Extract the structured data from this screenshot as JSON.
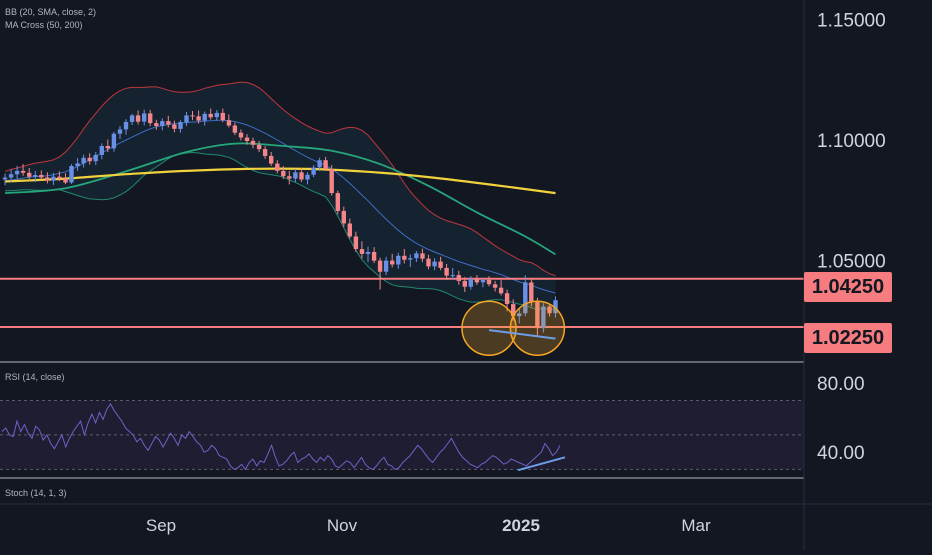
{
  "indicators": {
    "bb_label": "BB (20, SMA, close, 2)",
    "ma_label": "MA Cross (50, 200)",
    "rsi_label": "RSI (14, close)",
    "stoch_label": "Stoch (14, 1, 3)"
  },
  "colors": {
    "background": "#131722",
    "candle_up": "#6a8fe6",
    "candle_down": "#f4858a",
    "bb_basis": "#3e6ec8",
    "bb_upper": "#c0373f",
    "bb_lower": "#1f8a6e",
    "ma50": "#26a67a",
    "ma200": "#f2d23c",
    "level_line": "#f77c80",
    "rsi_line": "#6e63c6",
    "trend_line": "#6e9de8",
    "circle": "#f5a623"
  },
  "chart_data": [
    {
      "type": "candlestick",
      "name": "price",
      "y_ticks": [
        "1.15000",
        "1.10000",
        "1.05000"
      ],
      "ylim": [
        1.008,
        1.158
      ],
      "x_ticks": [
        "Sep",
        "Nov",
        "2025",
        "Mar"
      ],
      "levels": [
        "1.04250",
        "1.02250"
      ],
      "candles": [
        [
          1.0836,
          1.086,
          1.0812,
          1.0844
        ],
        [
          1.0844,
          1.0878,
          1.0826,
          1.0858
        ],
        [
          1.0858,
          1.0893,
          1.084,
          1.0872
        ],
        [
          1.0872,
          1.09,
          1.0852,
          1.0864
        ],
        [
          1.0864,
          1.0884,
          1.0838,
          1.0848
        ],
        [
          1.0848,
          1.0872,
          1.0826,
          1.0855
        ],
        [
          1.0855,
          1.0874,
          1.0835,
          1.0845
        ],
        [
          1.0845,
          1.0866,
          1.082,
          1.0832
        ],
        [
          1.0832,
          1.0864,
          1.0814,
          1.0848
        ],
        [
          1.0848,
          1.087,
          1.0829,
          1.084
        ],
        [
          1.084,
          1.0862,
          1.0817,
          1.0824
        ],
        [
          1.0824,
          1.09,
          1.0818,
          1.0892
        ],
        [
          1.0892,
          1.0925,
          1.0872,
          1.0903
        ],
        [
          1.0903,
          1.0939,
          1.0886,
          1.0926
        ],
        [
          1.0926,
          1.0945,
          1.0898,
          1.0912
        ],
        [
          1.0912,
          1.095,
          1.0896,
          1.0938
        ],
        [
          1.0938,
          1.0986,
          1.092,
          1.0975
        ],
        [
          1.0975,
          1.1002,
          1.095,
          1.0965
        ],
        [
          1.0965,
          1.1034,
          1.0951,
          1.1026
        ],
        [
          1.1026,
          1.1058,
          1.1004,
          1.1044
        ],
        [
          1.1044,
          1.1086,
          1.1022,
          1.1075
        ],
        [
          1.1075,
          1.1108,
          1.1062,
          1.1102
        ],
        [
          1.1102,
          1.1122,
          1.1064,
          1.1076
        ],
        [
          1.1076,
          1.1126,
          1.106,
          1.111
        ],
        [
          1.111,
          1.1124,
          1.1057,
          1.107
        ],
        [
          1.107,
          1.1084,
          1.1042,
          1.1058
        ],
        [
          1.1058,
          1.109,
          1.104,
          1.1078
        ],
        [
          1.1078,
          1.11,
          1.1052,
          1.1064
        ],
        [
          1.1064,
          1.108,
          1.1032,
          1.1046
        ],
        [
          1.1046,
          1.1082,
          1.103,
          1.1074
        ],
        [
          1.1074,
          1.1116,
          1.1058,
          1.1102
        ],
        [
          1.1102,
          1.112,
          1.1082,
          1.1098
        ],
        [
          1.1098,
          1.1122,
          1.1068,
          1.108
        ],
        [
          1.108,
          1.1118,
          1.106,
          1.1108
        ],
        [
          1.1108,
          1.113,
          1.1084,
          1.1094
        ],
        [
          1.1094,
          1.1124,
          1.108,
          1.1112
        ],
        [
          1.1112,
          1.113,
          1.1074,
          1.1082
        ],
        [
          1.1082,
          1.1106,
          1.1052,
          1.106
        ],
        [
          1.106,
          1.1072,
          1.102,
          1.103
        ],
        [
          1.103,
          1.1044,
          1.0998,
          1.101
        ],
        [
          1.101,
          1.1024,
          1.098,
          1.0996
        ],
        [
          1.0996,
          1.101,
          1.0966,
          1.098
        ],
        [
          1.098,
          1.0996,
          1.095,
          1.0962
        ],
        [
          1.0962,
          1.0974,
          1.0922,
          1.0934
        ],
        [
          1.0934,
          1.095,
          1.0892,
          1.0902
        ],
        [
          1.0902,
          1.0916,
          1.0862,
          1.0872
        ],
        [
          1.0872,
          1.0892,
          1.0838,
          1.085
        ],
        [
          1.085,
          1.0872,
          1.0816,
          1.084
        ],
        [
          1.084,
          1.088,
          1.0826,
          1.0866
        ],
        [
          1.0866,
          1.0884,
          1.0826,
          1.0836
        ],
        [
          1.0836,
          1.0866,
          1.0816,
          1.0856
        ],
        [
          1.0856,
          1.0896,
          1.0846,
          1.0886
        ],
        [
          1.0886,
          1.0926,
          1.0872,
          1.0916
        ],
        [
          1.0916,
          1.093,
          1.0872,
          1.088
        ],
        [
          1.088,
          1.0896,
          1.077,
          1.078
        ],
        [
          1.078,
          1.079,
          1.0692,
          1.0706
        ],
        [
          1.0706,
          1.0724,
          1.064,
          1.0654
        ],
        [
          1.0654,
          1.0674,
          1.0592,
          1.06
        ],
        [
          1.06,
          1.062,
          1.0536,
          1.0548
        ],
        [
          1.0548,
          1.058,
          1.051,
          1.0528
        ],
        [
          1.0528,
          1.0558,
          1.0494,
          1.0536
        ],
        [
          1.0536,
          1.0556,
          1.049,
          1.05
        ],
        [
          1.05,
          1.0512,
          1.038,
          1.0454
        ],
        [
          1.0454,
          1.0516,
          1.044,
          1.05
        ],
        [
          1.05,
          1.0528,
          1.0472,
          1.0484
        ],
        [
          1.0484,
          1.0532,
          1.0466,
          1.052
        ],
        [
          1.052,
          1.0548,
          1.0488,
          1.0504
        ],
        [
          1.0504,
          1.0526,
          1.0474,
          1.051
        ],
        [
          1.051,
          1.054,
          1.0494,
          1.053
        ],
        [
          1.053,
          1.055,
          1.0494,
          1.0508
        ],
        [
          1.0508,
          1.0524,
          1.0464,
          1.0476
        ],
        [
          1.0476,
          1.051,
          1.046,
          1.0496
        ],
        [
          1.0496,
          1.0516,
          1.046,
          1.047
        ],
        [
          1.047,
          1.0486,
          1.042,
          1.0438
        ],
        [
          1.0438,
          1.047,
          1.042,
          1.044
        ],
        [
          1.044,
          1.0458,
          1.04,
          1.0416
        ],
        [
          1.0416,
          1.0432,
          1.037,
          1.0392
        ],
        [
          1.0392,
          1.0436,
          1.038,
          1.0424
        ],
        [
          1.0424,
          1.044,
          1.04,
          1.041
        ],
        [
          1.041,
          1.043,
          1.039,
          1.042
        ],
        [
          1.042,
          1.0436,
          1.0394,
          1.0402
        ],
        [
          1.0402,
          1.0416,
          1.0372,
          1.0388
        ],
        [
          1.0388,
          1.042,
          1.0356,
          1.0365
        ],
        [
          1.0365,
          1.038,
          1.029,
          1.032
        ],
        [
          1.032,
          1.034,
          1.025,
          1.027
        ],
        [
          1.027,
          1.03,
          1.024,
          1.0282
        ],
        [
          1.0282,
          1.044,
          1.027,
          1.041
        ],
        [
          1.041,
          1.0426,
          1.031,
          1.033
        ],
        [
          1.033,
          1.0346,
          1.019,
          1.022
        ],
        [
          1.022,
          1.0324,
          1.0202,
          1.031
        ],
        [
          1.031,
          1.0322,
          1.0268,
          1.0282
        ],
        [
          1.0282,
          1.0352,
          1.0264,
          1.0336
        ]
      ],
      "bb_basis": [
        1.083,
        1.0834,
        1.0838,
        1.0842,
        1.0846,
        1.0848,
        1.085,
        1.0852,
        1.0856,
        1.0862,
        1.0868,
        1.0878,
        1.089,
        1.0904,
        1.0918,
        1.0932,
        1.0946,
        1.096,
        1.0974,
        1.0988,
        1.1,
        1.1012,
        1.1024,
        1.1036,
        1.1046,
        1.1054,
        1.106,
        1.1064,
        1.1068,
        1.107,
        1.1072,
        1.1074,
        1.1076,
        1.1078,
        1.108,
        1.1082,
        1.1082,
        1.108,
        1.1076,
        1.107,
        1.1062,
        1.1052,
        1.104,
        1.1028,
        1.1014,
        1.1,
        1.0986,
        1.097,
        1.0956,
        1.0942,
        1.0928,
        1.0916,
        1.0906,
        1.0896,
        1.088,
        1.0862,
        1.0842,
        1.082,
        1.0796,
        1.0772,
        1.0748,
        1.0722,
        1.0696,
        1.0672,
        1.0648,
        1.0626,
        1.0606,
        1.0588,
        1.0572,
        1.0558,
        1.0546,
        1.0536,
        1.0526,
        1.0516,
        1.0506,
        1.0496,
        1.0488,
        1.048,
        1.0472,
        1.0464,
        1.0458,
        1.045,
        1.0442,
        1.0432,
        1.0422,
        1.0412,
        1.0406,
        1.0398,
        1.0388,
        1.038,
        1.0372,
        1.0366
      ],
      "bb_upper": [
        1.087,
        1.0878,
        1.0884,
        1.089,
        1.0898,
        1.0904,
        1.0908,
        1.0912,
        1.0918,
        1.093,
        1.095,
        1.0978,
        1.101,
        1.1046,
        1.108,
        1.111,
        1.114,
        1.1166,
        1.1188,
        1.1204,
        1.1214,
        1.1218,
        1.1218,
        1.1218,
        1.122,
        1.122,
        1.1214,
        1.1206,
        1.12,
        1.1198,
        1.1198,
        1.12,
        1.1206,
        1.1214,
        1.122,
        1.1226,
        1.123,
        1.1232,
        1.1236,
        1.124,
        1.1238,
        1.123,
        1.1216,
        1.1196,
        1.1172,
        1.1148,
        1.1126,
        1.1106,
        1.1088,
        1.1072,
        1.1058,
        1.1046,
        1.1036,
        1.1028,
        1.103,
        1.104,
        1.1048,
        1.1052,
        1.105,
        1.104,
        1.102,
        1.099,
        1.096,
        1.093,
        1.0896,
        1.0858,
        1.082,
        1.0786,
        1.0758,
        1.0732,
        1.0708,
        1.069,
        1.0676,
        1.0666,
        1.0658,
        1.065,
        1.0642,
        1.0632,
        1.0616,
        1.0598,
        1.058,
        1.0562,
        1.0546,
        1.0532,
        1.0518,
        1.0504,
        1.0496,
        1.0492,
        1.0478,
        1.046,
        1.0446,
        1.0438
      ],
      "bb_lower": [
        1.079,
        1.079,
        1.0792,
        1.0794,
        1.0794,
        1.0792,
        1.0792,
        1.0792,
        1.0794,
        1.0794,
        1.0786,
        1.0778,
        1.077,
        1.0762,
        1.0756,
        1.0754,
        1.0752,
        1.0754,
        1.076,
        1.0772,
        1.0786,
        1.0806,
        1.083,
        1.0854,
        1.0872,
        1.0888,
        1.0906,
        1.0922,
        1.0936,
        1.0942,
        1.0946,
        1.0948,
        1.0946,
        1.0942,
        1.094,
        1.0938,
        1.0934,
        1.0928,
        1.0916,
        1.09,
        1.0886,
        1.0874,
        1.0864,
        1.086,
        1.0856,
        1.0852,
        1.0846,
        1.0834,
        1.0824,
        1.0812,
        1.0798,
        1.0786,
        1.0776,
        1.0764,
        1.073,
        1.0684,
        1.0636,
        1.0588,
        1.0542,
        1.0504,
        1.0476,
        1.0454,
        1.0432,
        1.0414,
        1.04,
        1.0394,
        1.0392,
        1.039,
        1.0386,
        1.0384,
        1.0384,
        1.0382,
        1.0376,
        1.0366,
        1.0354,
        1.0342,
        1.0334,
        1.0328,
        1.0328,
        1.033,
        1.0336,
        1.0338,
        1.0338,
        1.0332,
        1.0326,
        1.032,
        1.0316,
        1.0304,
        1.0298,
        1.03,
        1.0298,
        1.0294
      ],
      "ma50": [
        [
          0,
          1.078
        ],
        [
          10,
          1.08
        ],
        [
          20,
          1.087
        ],
        [
          30,
          1.095
        ],
        [
          38,
          1.0985
        ],
        [
          46,
          1.0975
        ],
        [
          54,
          1.0955
        ],
        [
          62,
          1.09
        ],
        [
          70,
          1.081
        ],
        [
          78,
          1.07
        ],
        [
          86,
          1.06
        ],
        [
          91,
          1.0526
        ]
      ],
      "ma200": [
        [
          0,
          1.0828
        ],
        [
          10,
          1.084
        ],
        [
          20,
          1.0858
        ],
        [
          30,
          1.0872
        ],
        [
          40,
          1.088
        ],
        [
          50,
          1.088
        ],
        [
          60,
          1.0868
        ],
        [
          70,
          1.0846
        ],
        [
          80,
          1.0816
        ],
        [
          91,
          1.078
        ]
      ],
      "annotations": {
        "circles": [
          [
            80,
            1.022
          ],
          [
            88,
            1.022
          ]
        ],
        "trend_line": [
          [
            80,
            1.0212
          ],
          [
            91,
            1.0177
          ]
        ]
      }
    },
    {
      "type": "line",
      "name": "RSI (14, close)",
      "y_ticks": [
        "80.00",
        "40.00"
      ],
      "ylim": [
        25,
        90
      ],
      "band": [
        30,
        70
      ],
      "values": [
        52,
        54,
        50,
        49,
        58,
        52,
        56,
        51,
        48,
        55,
        53,
        47,
        50,
        45,
        42,
        46,
        50,
        43,
        48,
        52,
        55,
        58,
        50,
        57,
        62,
        57,
        63,
        59,
        65,
        68,
        64,
        61,
        58,
        54,
        52,
        50,
        46,
        48,
        44,
        41,
        45,
        49,
        47,
        43,
        47,
        51,
        48,
        44,
        50,
        48,
        52,
        49,
        46,
        44,
        40,
        41,
        44,
        42,
        38,
        37,
        36,
        32,
        30,
        31,
        33,
        30,
        34,
        36,
        32,
        35,
        34,
        39,
        44,
        37,
        32,
        33,
        35,
        38,
        40,
        34,
        36,
        37,
        39,
        36,
        34,
        37,
        35,
        38,
        36,
        32,
        31,
        33,
        35,
        34,
        31,
        34,
        37,
        33,
        31,
        30,
        32,
        35,
        37,
        33,
        32,
        30,
        31,
        34,
        36,
        38,
        41,
        44,
        42,
        39,
        36,
        34,
        37,
        40,
        42,
        45,
        48,
        44,
        40,
        37,
        35,
        33,
        32,
        31,
        33,
        34,
        36,
        38,
        37,
        35,
        33,
        34,
        36,
        35,
        34,
        33,
        32,
        34,
        36,
        38,
        40,
        45,
        42,
        38,
        40,
        44
      ]
    }
  ]
}
